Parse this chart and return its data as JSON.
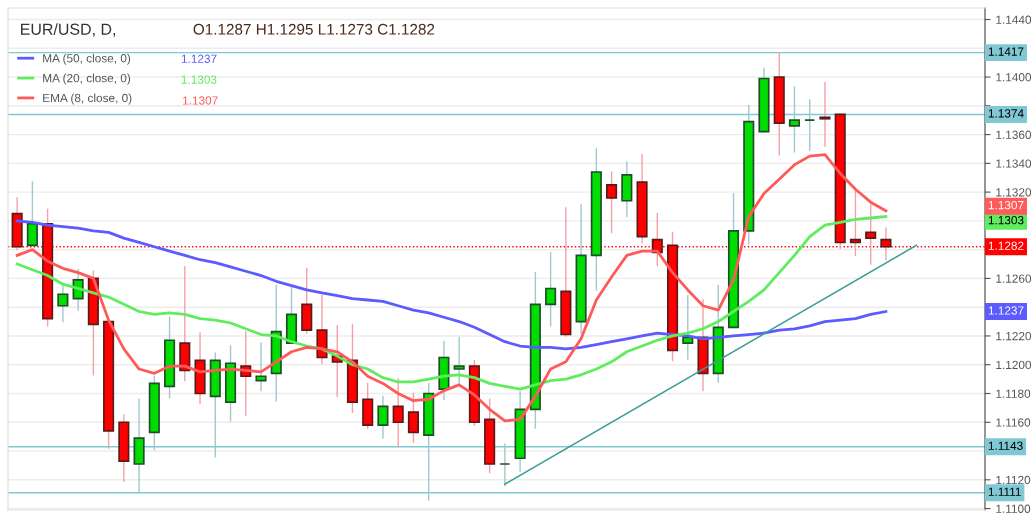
{
  "chart_data": {
    "type": "candlestick",
    "title": "EUR/USD, D,",
    "subtitle": "O1.1287 H1.1295 L1.1273 C1.1282",
    "categories": [
      null,
      null,
      null,
      null,
      null,
      null,
      null,
      null,
      null,
      null,
      null,
      null,
      null,
      null,
      null,
      null,
      null,
      null,
      null,
      null,
      null,
      null,
      null,
      null,
      null,
      null,
      null,
      null,
      null,
      null,
      null,
      null,
      null,
      null,
      null,
      null,
      null,
      null,
      null,
      null,
      null,
      null,
      null,
      null,
      null,
      null,
      null,
      null,
      null,
      null,
      null,
      null,
      null,
      null,
      null,
      null,
      null,
      null,
      null,
      null,
      null,
      null,
      null,
      null
    ],
    "ohlc": [
      [
        1.1305,
        1.1316,
        1.128,
        1.1282
      ],
      [
        1.1283,
        1.1327,
        1.1283,
        1.1298
      ],
      [
        1.1298,
        1.1308,
        1.1227,
        1.1232
      ],
      [
        1.1241,
        1.1256,
        1.123,
        1.1249
      ],
      [
        1.1246,
        1.1266,
        1.1238,
        1.1259
      ],
      [
        1.126,
        1.1265,
        1.1193,
        1.1228
      ],
      [
        1.123,
        1.123,
        1.1142,
        1.1154
      ],
      [
        1.116,
        1.1165,
        1.1119,
        1.1133
      ],
      [
        1.1131,
        1.1176,
        1.1111,
        1.1149
      ],
      [
        1.1153,
        1.1192,
        1.1141,
        1.1187
      ],
      [
        1.1185,
        1.1233,
        1.1177,
        1.1217
      ],
      [
        1.1215,
        1.1268,
        1.1189,
        1.1196
      ],
      [
        1.1203,
        1.1222,
        1.1173,
        1.118
      ],
      [
        1.1178,
        1.1208,
        1.1136,
        1.1203
      ],
      [
        1.1174,
        1.1213,
        1.1161,
        1.1201
      ],
      [
        1.1199,
        1.1223,
        1.1165,
        1.1192
      ],
      [
        1.1189,
        1.1215,
        1.1182,
        1.1192
      ],
      [
        1.1194,
        1.1255,
        1.1175,
        1.1223
      ],
      [
        1.1215,
        1.1255,
        1.1215,
        1.1235
      ],
      [
        1.1242,
        1.1267,
        1.1222,
        1.1224
      ],
      [
        1.1224,
        1.1248,
        1.1201,
        1.1205
      ],
      [
        1.1206,
        1.1227,
        1.1178,
        1.1202
      ],
      [
        1.1203,
        1.1228,
        1.1167,
        1.1174
      ],
      [
        1.1176,
        1.1187,
        1.1156,
        1.1158
      ],
      [
        1.1158,
        1.1178,
        1.1149,
        1.1171
      ],
      [
        1.1171,
        1.119,
        1.1143,
        1.116
      ],
      [
        1.1167,
        1.118,
        1.1146,
        1.1153
      ],
      [
        1.1151,
        1.1187,
        1.1106,
        1.118
      ],
      [
        1.1183,
        1.1216,
        1.1176,
        1.1205
      ],
      [
        1.1197,
        1.1219,
        1.1187,
        1.1199
      ],
      [
        1.1199,
        1.1203,
        1.1158,
        1.116
      ],
      [
        1.1162,
        1.1176,
        1.1125,
        1.1131
      ],
      [
        1.1131,
        1.1145,
        1.1116,
        1.1131
      ],
      [
        1.1135,
        1.1181,
        1.1126,
        1.1169
      ],
      [
        1.1169,
        1.1264,
        1.1156,
        1.1242
      ],
      [
        1.1242,
        1.1278,
        1.1227,
        1.1253
      ],
      [
        1.1251,
        1.1309,
        1.122,
        1.1221
      ],
      [
        1.123,
        1.1311,
        1.1222,
        1.1276
      ],
      [
        1.1276,
        1.135,
        1.1252,
        1.1334
      ],
      [
        1.1325,
        1.1334,
        1.1292,
        1.1316
      ],
      [
        1.1314,
        1.1341,
        1.1303,
        1.1332
      ],
      [
        1.1327,
        1.1346,
        1.1285,
        1.1289
      ],
      [
        1.1287,
        1.1305,
        1.1269,
        1.1278
      ],
      [
        1.1283,
        1.1292,
        1.1203,
        1.121
      ],
      [
        1.1215,
        1.1248,
        1.1204,
        1.1219
      ],
      [
        1.1219,
        1.1245,
        1.1182,
        1.1194
      ],
      [
        1.1194,
        1.1255,
        1.1188,
        1.1226
      ],
      [
        1.1226,
        1.1319,
        1.1226,
        1.1293
      ],
      [
        1.1293,
        1.138,
        1.1284,
        1.1369
      ],
      [
        1.1362,
        1.1406,
        1.1362,
        1.1399
      ],
      [
        1.14,
        1.1417,
        1.1346,
        1.1368
      ],
      [
        1.1366,
        1.1393,
        1.1348,
        1.137
      ],
      [
        1.137,
        1.1384,
        1.1349,
        1.137
      ],
      [
        1.1372,
        1.1396,
        1.1352,
        1.1371
      ],
      [
        1.1374,
        1.1374,
        1.1281,
        1.1285
      ],
      [
        1.1287,
        1.1322,
        1.1276,
        1.1285
      ],
      [
        1.1292,
        1.1311,
        1.127,
        1.1288
      ],
      [
        1.1287,
        1.1295,
        1.1273,
        1.1282
      ],
      null,
      null,
      null,
      null,
      null,
      null
    ],
    "series": [
      {
        "type": "line",
        "name": "MA (50, close, 0)",
        "color": "#5b5bff",
        "values": [
          1.13,
          1.1299,
          1.1297,
          1.1296,
          1.1295,
          1.1293,
          1.1292,
          1.1288,
          1.1285,
          1.1282,
          1.1279,
          1.1276,
          1.1273,
          1.1271,
          1.1268,
          1.1265,
          1.1262,
          1.1258,
          1.1255,
          1.1252,
          1.125,
          1.1248,
          1.1246,
          1.1245,
          1.1244,
          1.1241,
          1.1238,
          1.1236,
          1.1233,
          1.123,
          1.1226,
          1.1221,
          1.1216,
          1.1213,
          1.1212,
          1.1212,
          1.1211,
          1.1212,
          1.1214,
          1.1216,
          1.1218,
          1.122,
          1.1222,
          1.1221,
          1.122,
          1.1218,
          1.1219,
          1.122,
          1.1221,
          1.1222,
          1.1224,
          1.1225,
          1.1227,
          1.123,
          1.1231,
          1.1232,
          1.1235,
          1.1237,
          null,
          null,
          null,
          null,
          null,
          null
        ]
      },
      {
        "type": "line",
        "name": "MA (20, close, 0)",
        "color": "#5fec5f",
        "values": [
          1.127,
          1.1266,
          1.1262,
          1.1256,
          1.1253,
          1.125,
          1.1247,
          1.1242,
          1.1237,
          1.1235,
          1.1236,
          1.1235,
          1.1232,
          1.1231,
          1.1229,
          1.1225,
          1.1221,
          1.122,
          1.1216,
          1.1213,
          1.1211,
          1.1206,
          1.12,
          1.1197,
          1.1191,
          1.1188,
          1.1188,
          1.119,
          1.1192,
          1.1193,
          1.1191,
          1.1187,
          1.1185,
          1.1183,
          1.1186,
          1.1189,
          1.119,
          1.1193,
          1.1197,
          1.1202,
          1.1209,
          1.1213,
          1.1217,
          1.122,
          1.1222,
          1.1225,
          1.123,
          1.1237,
          1.1244,
          1.1252,
          1.1264,
          1.1276,
          1.1289,
          1.1297,
          1.1299,
          1.1301,
          1.1302,
          1.1303,
          null,
          null,
          null,
          null,
          null,
          null
        ]
      },
      {
        "type": "line",
        "name": "EMA (8, close, 0)",
        "color": "#ff5a5a",
        "values": [
          1.1276,
          1.128,
          1.1272,
          1.1267,
          1.1264,
          1.126,
          1.1231,
          1.1211,
          1.1197,
          1.1194,
          1.1199,
          1.1199,
          1.1195,
          1.1196,
          1.1197,
          1.1196,
          1.1195,
          1.1202,
          1.1209,
          1.1212,
          1.1211,
          1.1209,
          1.1202,
          1.1192,
          1.1187,
          1.118,
          1.1175,
          1.1176,
          1.1182,
          1.1186,
          1.1179,
          1.1169,
          1.1161,
          1.1162,
          1.1178,
          1.1197,
          1.1202,
          1.1218,
          1.1245,
          1.1261,
          1.1276,
          1.1279,
          1.1279,
          1.1264,
          1.1252,
          1.1241,
          1.1238,
          1.1259,
          1.1303,
          1.1319,
          1.1329,
          1.1339,
          1.1345,
          1.1346,
          1.1333,
          1.1322,
          1.1313,
          1.1307,
          null,
          null,
          null,
          null,
          null,
          null
        ]
      },
      {
        "type": "line",
        "color": "#3a9e96",
        "values": [
          null,
          null,
          null,
          null,
          null,
          null,
          null,
          null,
          null,
          null,
          null,
          null,
          null,
          null,
          null,
          null,
          null,
          null,
          null,
          null,
          null,
          null,
          null,
          null,
          null,
          null,
          null,
          null,
          null,
          null,
          null,
          null,
          1.1117,
          null,
          null,
          null,
          null,
          null,
          null,
          null,
          null,
          null,
          null,
          null,
          null,
          null,
          null,
          null,
          null,
          null,
          null,
          null,
          null,
          null,
          null,
          null,
          null,
          null,
          null,
          1.1283,
          null,
          null,
          null,
          null
        ]
      }
    ],
    "ylim": [
      1.1099,
      1.1448
    ],
    "yticks": [
      {
        "value": 1.11,
        "label": "1.1100"
      },
      {
        "value": 1.112,
        "label": "1.1120"
      },
      {
        "value": 1.114,
        "label": null
      },
      {
        "value": 1.116,
        "label": "1.1160"
      },
      {
        "value": 1.118,
        "label": "1.1180"
      },
      {
        "value": 1.12,
        "label": "1.1200"
      },
      {
        "value": 1.122,
        "label": "1.1220"
      },
      {
        "value": 1.124,
        "label": null
      },
      {
        "value": 1.126,
        "label": "1.1260"
      },
      {
        "value": 1.128,
        "label": null
      },
      {
        "value": 1.13,
        "label": null
      },
      {
        "value": 1.132,
        "label": "1.1320"
      },
      {
        "value": 1.134,
        "label": "1.1340"
      },
      {
        "value": 1.136,
        "label": "1.1360"
      },
      {
        "value": 1.138,
        "label": null
      },
      {
        "value": 1.14,
        "label": "1.1400"
      },
      {
        "value": 1.142,
        "label": null
      },
      {
        "value": 1.144,
        "label": "1.1440"
      }
    ],
    "ref_lines": [
      {
        "axis": "y",
        "value": 1.1417,
        "label": "1.1417",
        "color": "#7fc8d4"
      },
      {
        "axis": "y",
        "value": 1.1374,
        "label": "1.1374",
        "color": "#7fc8d4"
      },
      {
        "axis": "y",
        "value": 1.1143,
        "label": "1.1143",
        "color": "#7fc8d4"
      },
      {
        "axis": "y",
        "value": 1.1111,
        "label": "1.1111",
        "color": "#7fc8d4"
      },
      {
        "axis": "y",
        "value": 1.1282,
        "label": "1.1282",
        "color": "#ff0000",
        "line_style": "dotted"
      }
    ],
    "annotations": [
      "1.1237",
      "1.1303",
      "1.1307"
    ],
    "grid": "y",
    "legend": "top left"
  }
}
